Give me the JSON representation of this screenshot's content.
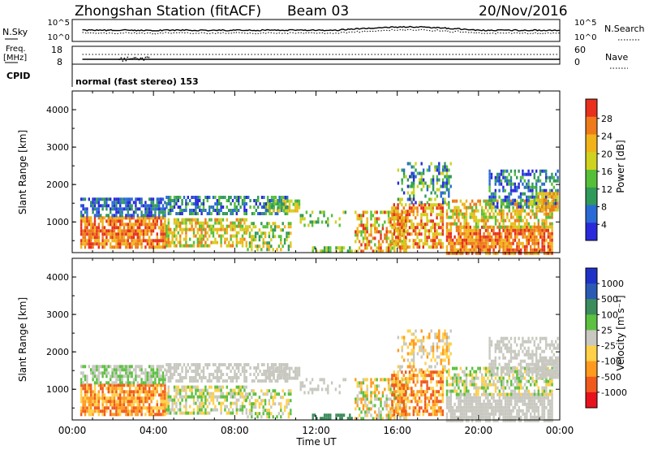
{
  "header": {
    "station": "Zhongshan Station (fitACF)",
    "beam": "Beam 03",
    "date": "20/Nov/2016"
  },
  "strips": {
    "nsky_label": "N.Sky",
    "nsky_ticks": [
      "10^5",
      "10^0"
    ],
    "nsearch_label": "N.Search",
    "nsearch_ticks": [
      "10^5",
      "10^0"
    ],
    "freq_label_1": "Freq.",
    "freq_label_2": "[MHz]",
    "freq_ticks": [
      "18",
      "8"
    ],
    "nave_label": "Nave",
    "nave_ticks": [
      "60",
      "0"
    ],
    "cpid_label": "CPID",
    "cpid_text": "normal (fast stereo) 153"
  },
  "xaxis": {
    "label": "Time UT",
    "ticks": [
      "00:00",
      "04:00",
      "08:00",
      "12:00",
      "16:00",
      "20:00",
      "00:00"
    ]
  },
  "colors": {
    "power": [
      "#2a2adc",
      "#2a6ad4",
      "#2f9a5a",
      "#55c037",
      "#cfd21e",
      "#f0b41a",
      "#ee7a1a",
      "#e8301c"
    ],
    "velocity": [
      "#e8121c",
      "#f05a1c",
      "#ff9a1e",
      "#ffd048",
      "#c8c8c0",
      "#5cc040",
      "#3c8c5c",
      "#2a5ab4",
      "#1e32c8"
    ]
  },
  "chart_data": [
    {
      "type": "heatmap",
      "name": "power",
      "ylabel": "Slant Range [km]",
      "yticks": [
        "4000",
        "3000",
        "2000",
        "1000"
      ],
      "ylim": [
        180,
        4500
      ],
      "xlim_hours": [
        0,
        24
      ],
      "colorbar_label": "Power [dB]",
      "colorbar_ticks": [
        "28",
        "24",
        "20",
        "16",
        "12",
        "8",
        "4"
      ],
      "colorbar_range": [
        0,
        30
      ]
    },
    {
      "type": "heatmap",
      "name": "velocity",
      "ylabel": "Slant Range [km]",
      "yticks": [
        "4000",
        "3000",
        "2000",
        "1000"
      ],
      "ylim": [
        180,
        4500
      ],
      "xlim_hours": [
        0,
        24
      ],
      "colorbar_label": "Velocity [m s⁻¹]",
      "colorbar_ticks": [
        "1000",
        "500",
        "100",
        "25",
        "-25",
        "-100",
        "-500",
        "-1000"
      ]
    }
  ]
}
